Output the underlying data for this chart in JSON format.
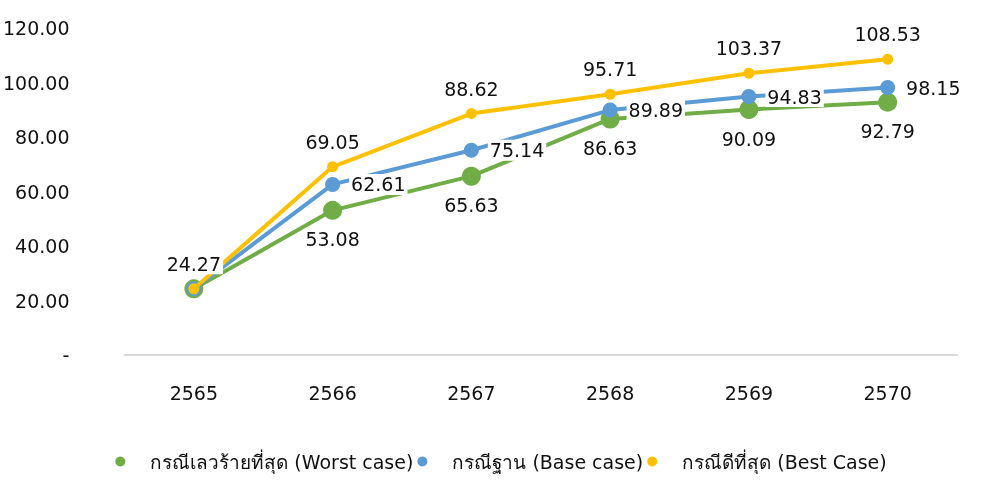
{
  "chart_data": {
    "type": "line",
    "categories": [
      "2565",
      "2566",
      "2567",
      "2568",
      "2569",
      "2570"
    ],
    "series": [
      {
        "name": "กรณีเลวร้ายที่สุด (Worst case)",
        "color": "#70ad47",
        "values": [
          24.27,
          53.08,
          65.63,
          86.63,
          90.09,
          92.79
        ],
        "value_labels": [
          null,
          "53.08",
          "65.63",
          "86.63",
          "90.09",
          "92.79"
        ]
      },
      {
        "name": "กรณีฐาน (Base case)",
        "color": "#5b9bd5",
        "values": [
          24.27,
          62.61,
          75.14,
          89.89,
          94.83,
          98.15
        ],
        "value_labels": [
          null,
          "62.61",
          "75.14",
          "89.89",
          "94.83",
          "98.15"
        ]
      },
      {
        "name": "กรณีดีที่สุด (Best Case)",
        "color": "#ffc000",
        "values": [
          24.27,
          69.05,
          88.62,
          95.71,
          103.37,
          108.53
        ],
        "value_labels": [
          "24.27",
          "69.05",
          "88.62",
          "95.71",
          "103.37",
          "108.53"
        ]
      }
    ],
    "ylim": [
      0,
      120
    ],
    "yticks": [
      {
        "value": 0,
        "label": "-"
      },
      {
        "value": 20,
        "label": "20.00"
      },
      {
        "value": 40,
        "label": "40.00"
      },
      {
        "value": 60,
        "label": "60.00"
      },
      {
        "value": 80,
        "label": "80.00"
      },
      {
        "value": 100,
        "label": "100.00"
      },
      {
        "value": 120,
        "label": "120.00"
      }
    ],
    "grid": false,
    "legend": "bottom",
    "marker": "circle",
    "line_style": "solid"
  }
}
